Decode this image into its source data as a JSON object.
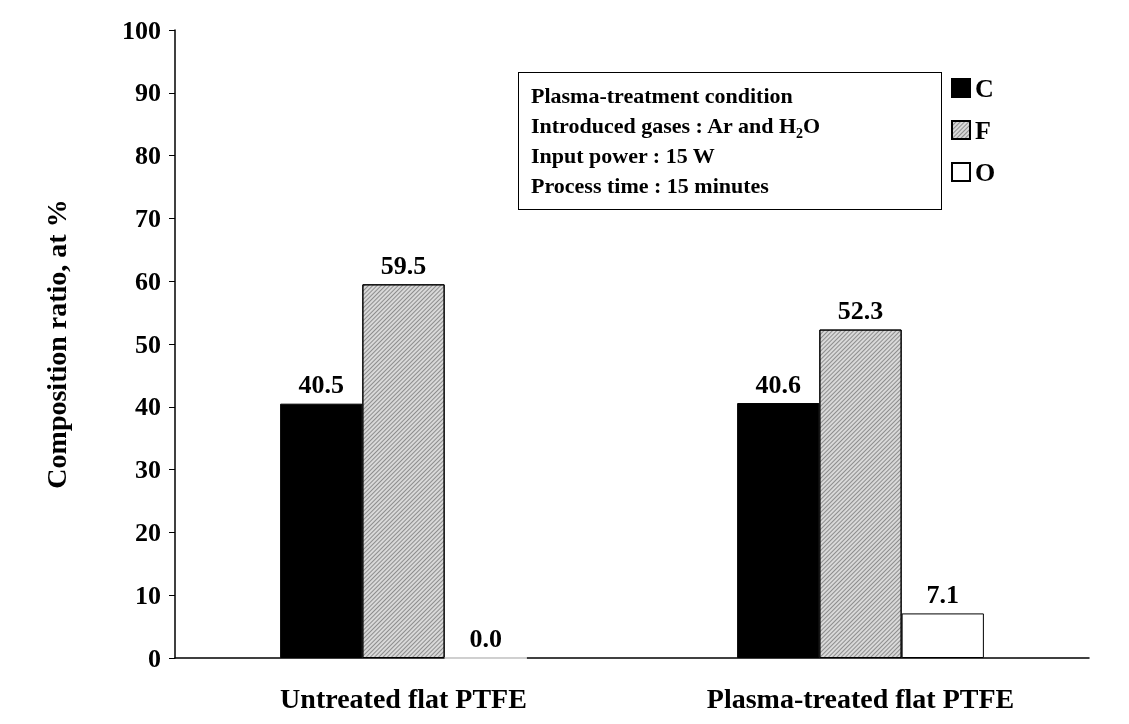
{
  "chart_data": {
    "type": "bar",
    "ylabel": "Composition ratio, at %",
    "categories": [
      "Untreated flat PTFE",
      "Plasma-treated flat PTFE"
    ],
    "series": [
      {
        "name": "C",
        "color": "#000000",
        "values": [
          40.5,
          40.6
        ],
        "value_labels": [
          "40.5",
          "40.6"
        ]
      },
      {
        "name": "F",
        "color": "#d9d9d9",
        "values": [
          59.5,
          52.3
        ],
        "value_labels": [
          "59.5",
          "52.3"
        ]
      },
      {
        "name": "O",
        "color": "#ffffff",
        "values": [
          0.0,
          7.1
        ],
        "value_labels": [
          "0.0",
          "7.1"
        ]
      }
    ],
    "ylim": [
      0,
      100
    ],
    "yticks": [
      0,
      10,
      20,
      30,
      40,
      50,
      60,
      70,
      80,
      90,
      100
    ],
    "grid": false,
    "legend": "top right",
    "annotations": [
      "Plasma-treatment condition",
      "Introduced gases : Ar and H$_{2}$O",
      "Input power : 15 W",
      "Process time : 15 minutes"
    ]
  }
}
